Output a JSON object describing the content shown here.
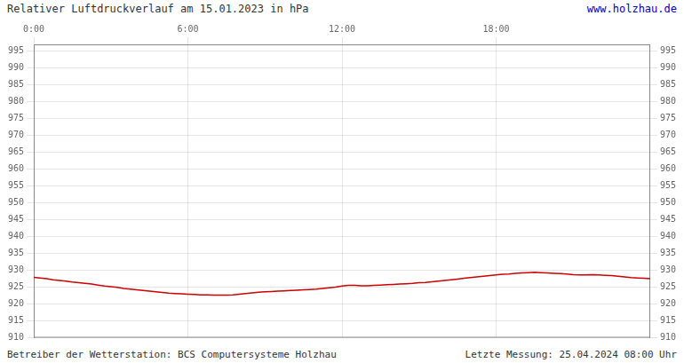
{
  "chart_data": {
    "type": "line",
    "title": "Relativer Luftdruckverlauf am 15.01.2023 in hPa",
    "annotations": [
      "www.holzhau.de",
      "Betreiber der Wetterstation: BCS Computersysteme Holzhau",
      "Letzte Messung: 25.04.2024 08:00 Uhr"
    ],
    "x": [
      0.0,
      0.25,
      0.5,
      0.75,
      1.0,
      1.25,
      1.5,
      1.75,
      2.0,
      2.25,
      2.5,
      2.75,
      3.0,
      3.25,
      3.5,
      3.75,
      4.0,
      4.25,
      4.5,
      4.75,
      5.0,
      5.25,
      5.5,
      5.75,
      6.0,
      6.25,
      6.5,
      6.75,
      7.0,
      7.25,
      7.5,
      7.75,
      8.0,
      8.25,
      8.5,
      8.75,
      9.0,
      9.25,
      9.5,
      9.75,
      10.0,
      10.25,
      10.5,
      10.75,
      11.0,
      11.25,
      11.5,
      11.75,
      12.0,
      12.25,
      12.5,
      12.75,
      13.0,
      13.25,
      13.5,
      13.75,
      14.0,
      14.25,
      14.5,
      14.75,
      15.0,
      15.25,
      15.5,
      15.75,
      16.0,
      16.25,
      16.5,
      16.75,
      17.0,
      17.25,
      17.5,
      17.75,
      18.0,
      18.25,
      18.5,
      18.75,
      19.0,
      19.25,
      19.5,
      19.75,
      20.0,
      20.25,
      20.5,
      20.75,
      21.0,
      21.25,
      21.5,
      21.75,
      22.0,
      22.25,
      22.5,
      22.75,
      23.0,
      23.25,
      23.5,
      23.75,
      24.0
    ],
    "values": [
      927.8,
      927.6,
      927.4,
      927.1,
      926.9,
      926.7,
      926.4,
      926.2,
      926.0,
      925.8,
      925.5,
      925.2,
      925.0,
      924.8,
      924.5,
      924.3,
      924.1,
      923.9,
      923.7,
      923.5,
      923.3,
      923.1,
      923.0,
      922.9,
      922.8,
      922.7,
      922.6,
      922.6,
      922.5,
      922.5,
      922.5,
      922.6,
      922.8,
      923.0,
      923.2,
      923.4,
      923.5,
      923.6,
      923.7,
      923.8,
      923.9,
      924.0,
      924.1,
      924.2,
      924.3,
      924.5,
      924.7,
      924.9,
      925.2,
      925.4,
      925.4,
      925.3,
      925.3,
      925.4,
      925.5,
      925.6,
      925.7,
      925.8,
      925.9,
      926.0,
      926.2,
      926.3,
      926.5,
      926.7,
      926.9,
      927.1,
      927.3,
      927.5,
      927.7,
      927.9,
      928.1,
      928.3,
      928.5,
      928.7,
      928.8,
      929.0,
      929.1,
      929.2,
      929.3,
      929.2,
      929.1,
      929.0,
      928.9,
      928.8,
      928.6,
      928.5,
      928.5,
      928.6,
      928.5,
      928.4,
      928.3,
      928.1,
      927.9,
      927.7,
      927.6,
      927.5,
      927.4
    ],
    "color": "#cc0000",
    "xlim": [
      0,
      24
    ],
    "xticks": [
      {
        "value": 0,
        "label": "0:00"
      },
      {
        "value": 6,
        "label": "6:00"
      },
      {
        "value": 12,
        "label": "12:00"
      },
      {
        "value": 18,
        "label": "18:00"
      }
    ],
    "ylim": [
      910,
      997
    ],
    "yticks": [
      910,
      915,
      920,
      925,
      930,
      935,
      940,
      945,
      950,
      955,
      960,
      965,
      970,
      975,
      980,
      985,
      990,
      995
    ],
    "y2lim": [
      910,
      997
    ],
    "y2ticks": [
      910,
      915,
      920,
      925,
      930,
      935,
      940,
      945,
      950,
      955,
      960,
      965,
      970,
      975,
      980,
      985,
      990,
      995
    ],
    "grid": true
  }
}
